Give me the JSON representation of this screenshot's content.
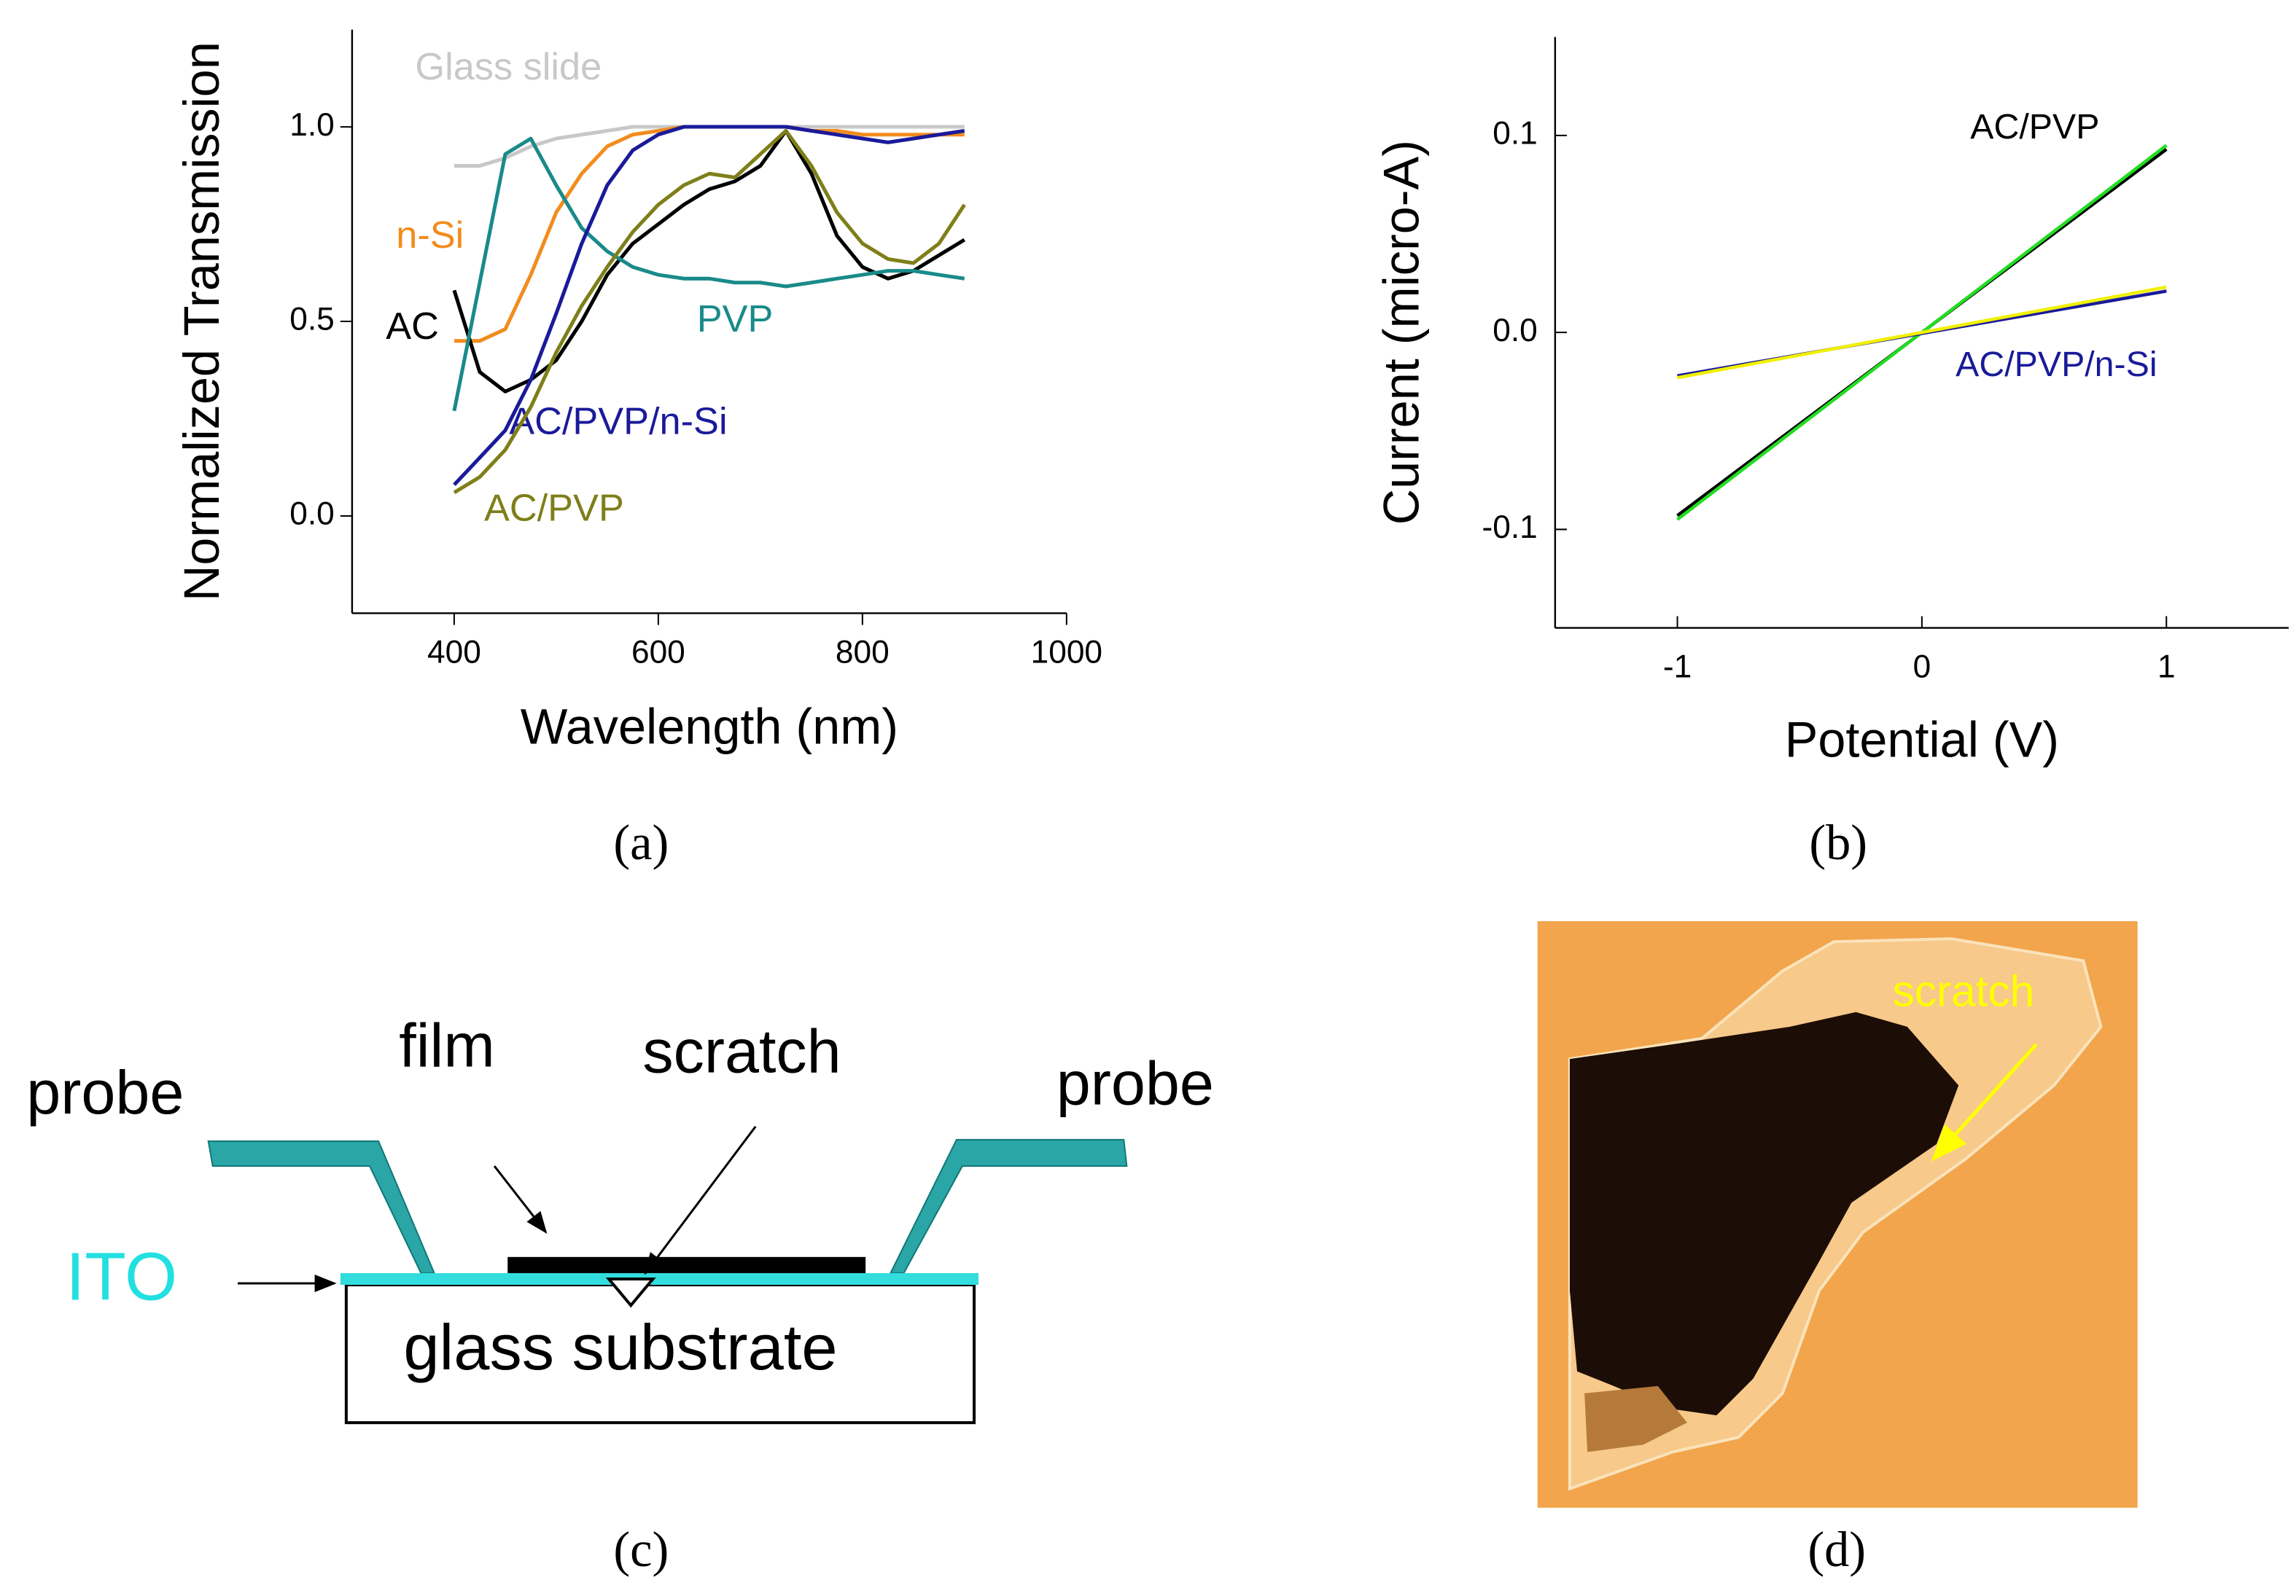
{
  "chart_data": [
    {
      "type": "line",
      "xlabel": "Wavelength (nm)",
      "ylabel": "Normalized Transmission",
      "x": [
        400,
        425,
        450,
        475,
        500,
        525,
        550,
        575,
        600,
        625,
        650,
        675,
        700,
        725,
        750,
        775,
        800,
        825,
        850,
        875,
        900
      ],
      "xlim": [
        300,
        1000
      ],
      "xticks": [
        400,
        600,
        800,
        1000
      ],
      "ylim": [
        -0.25,
        1.25
      ],
      "yticks": [
        {
          "value": 0,
          "label": "0.0"
        },
        {
          "value": 0.5,
          "label": "0.5"
        },
        {
          "value": 1,
          "label": "1.0"
        }
      ],
      "series": [
        {
          "name": "Glass slide",
          "color": "#c8c8c8",
          "values": [
            0.9,
            0.9,
            0.92,
            0.95,
            0.97,
            0.98,
            0.99,
            1.0,
            1.0,
            1.0,
            1.0,
            1.0,
            1.0,
            1.0,
            1.0,
            1.0,
            1.0,
            1.0,
            1.0,
            1.0,
            1.0
          ]
        },
        {
          "name": "n-Si",
          "color": "#f28c1e",
          "values": [
            0.45,
            0.45,
            0.48,
            0.62,
            0.78,
            0.88,
            0.95,
            0.98,
            0.99,
            1.0,
            1.0,
            1.0,
            1.0,
            1.0,
            0.99,
            0.99,
            0.98,
            0.98,
            0.98,
            0.98,
            0.98
          ]
        },
        {
          "name": "AC",
          "color": "#000000",
          "values": [
            0.58,
            0.37,
            0.32,
            0.35,
            0.4,
            0.5,
            0.62,
            0.7,
            0.75,
            0.8,
            0.84,
            0.86,
            0.9,
            0.99,
            0.88,
            0.72,
            0.64,
            0.61,
            0.63,
            0.67,
            0.71
          ]
        },
        {
          "name": "PVP",
          "color": "#1a8a8a",
          "values": [
            0.27,
            0.6,
            0.93,
            0.97,
            0.85,
            0.74,
            0.68,
            0.64,
            0.62,
            0.61,
            0.61,
            0.6,
            0.6,
            0.59,
            0.6,
            0.61,
            0.62,
            0.63,
            0.63,
            0.62,
            0.61
          ]
        },
        {
          "name": "AC/PVP/n-Si",
          "color": "#1a1a9a",
          "values": [
            0.08,
            0.15,
            0.22,
            0.35,
            0.52,
            0.7,
            0.85,
            0.94,
            0.98,
            1.0,
            1.0,
            1.0,
            1.0,
            1.0,
            0.99,
            0.98,
            0.97,
            0.96,
            0.97,
            0.98,
            0.99
          ]
        },
        {
          "name": "AC/PVP",
          "color": "#7f7f1a",
          "values": [
            0.06,
            0.1,
            0.17,
            0.28,
            0.42,
            0.54,
            0.64,
            0.73,
            0.8,
            0.85,
            0.88,
            0.87,
            0.93,
            0.99,
            0.9,
            0.78,
            0.7,
            0.66,
            0.65,
            0.7,
            0.8
          ]
        }
      ]
    },
    {
      "type": "line",
      "xlabel": "Potential (V)",
      "ylabel": "Current (micro-A)",
      "x": [
        -1,
        1
      ],
      "xlim": [
        -1.5,
        1.5
      ],
      "xticks": [
        -1,
        0,
        1
      ],
      "ylim": [
        -0.15,
        0.15
      ],
      "yticks": [
        -0.1,
        {
          "value": 0,
          "label": "0.0"
        },
        0.1
      ],
      "series": [
        {
          "name": "AC/PVP",
          "color": "#000000",
          "values": [
            -0.093,
            0.093
          ]
        },
        {
          "color": "#22dd22",
          "values": [
            -0.095,
            0.095
          ]
        },
        {
          "name": "AC/PVP/n-Si",
          "color": "#1a1a9a",
          "values": [
            -0.022,
            0.021
          ]
        },
        {
          "color": "#f0f000",
          "values": [
            -0.023,
            0.023
          ]
        }
      ]
    }
  ],
  "panel_labels": [
    "(a)",
    "(b)",
    "(c)",
    "(d)"
  ],
  "diagram": {
    "probe_left": "probe",
    "film": "film",
    "scratch": "scratch",
    "probe_right": "probe",
    "ito": "ITO",
    "substrate": "glass substrate"
  },
  "photo": {
    "label": "scratch"
  }
}
